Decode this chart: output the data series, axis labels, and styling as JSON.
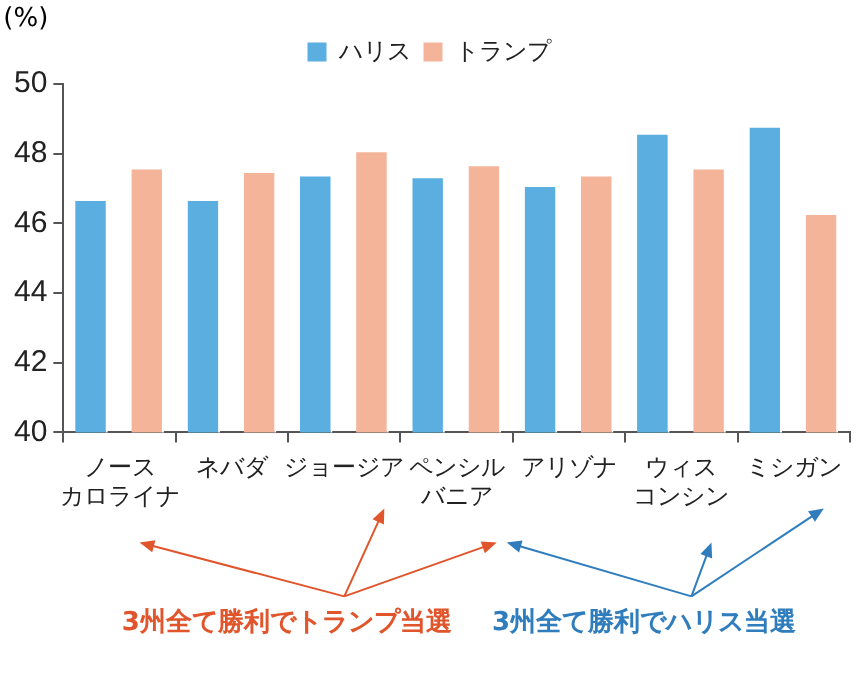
{
  "chart_data": {
    "type": "bar",
    "categories": [
      "ノースカロライナ",
      "ネバダ",
      "ジョージア",
      "ペンシルバニア",
      "アリゾナ",
      "ウィスコンシン",
      "ミシガン"
    ],
    "series": [
      {
        "name": "ハリス",
        "color": "#5aaee0",
        "values": [
          46.7,
          46.7,
          47.4,
          47.35,
          47.1,
          48.6,
          48.8
        ]
      },
      {
        "name": "トランプ",
        "color": "#f4b49a",
        "values": [
          47.6,
          47.5,
          48.1,
          47.7,
          47.4,
          47.6,
          46.3
        ]
      }
    ],
    "ylabel": "(%)",
    "ylim": [
      40,
      50
    ],
    "yticks": [
      40,
      42,
      44,
      46,
      48,
      50
    ],
    "annotations": [
      "3州全て勝利でトランプ当選",
      "3州全て勝利でハリス当選"
    ],
    "grid": false,
    "legend": "top"
  }
}
